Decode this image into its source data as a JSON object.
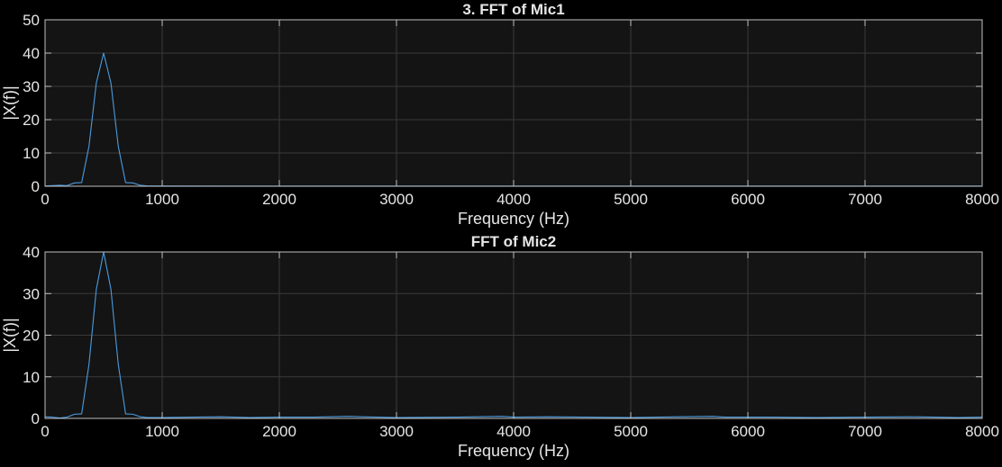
{
  "figure": {
    "background": "#000000",
    "axes_background": "#141414",
    "grid_color": "#3a3a3a",
    "axis_color": "#bfbfbf",
    "text_color": "#e6e6e6",
    "line_color": "#4a9be0"
  },
  "chart_data": [
    {
      "type": "line",
      "title": "3. FFT of Mic1",
      "xlabel": "Frequency (Hz)",
      "ylabel": "|X(f)|",
      "xlim": [
        0,
        8000
      ],
      "ylim": [
        0,
        50
      ],
      "xticks": [
        0,
        1000,
        2000,
        3000,
        4000,
        5000,
        6000,
        7000,
        8000
      ],
      "yticks": [
        0,
        10,
        20,
        30,
        40,
        50
      ],
      "grid": true,
      "series": [
        {
          "x": [
            0,
            62.5,
            125,
            187.5,
            250,
            312.5,
            375,
            437.5,
            500,
            562.5,
            625,
            687.5,
            750,
            812.5,
            875,
            1000,
            1500,
            2000,
            3000,
            4000,
            5000,
            6000,
            7000,
            8000
          ],
          "y": [
            0.1,
            0.2,
            0.3,
            0.2,
            1.0,
            1.1,
            12,
            31,
            40,
            31,
            12,
            1.1,
            1.0,
            0.3,
            0.1,
            0.1,
            0.05,
            0.05,
            0.05,
            0.05,
            0.05,
            0.05,
            0.05,
            0.05
          ]
        }
      ]
    },
    {
      "type": "line",
      "title": "FFT of Mic2",
      "xlabel": "Frequency (Hz)",
      "ylabel": "|X(f)|",
      "xlim": [
        0,
        8000
      ],
      "ylim": [
        0,
        40
      ],
      "xticks": [
        0,
        1000,
        2000,
        3000,
        4000,
        5000,
        6000,
        7000,
        8000
      ],
      "yticks": [
        0,
        10,
        20,
        30,
        40
      ],
      "grid": true,
      "series": [
        {
          "x": [
            0,
            62.5,
            125,
            187.5,
            250,
            312.5,
            375,
            437.5,
            500,
            562.5,
            625,
            687.5,
            750,
            812.5,
            875,
            1000,
            1250,
            1500,
            1750,
            2000,
            2300,
            2600,
            2700,
            3000,
            3500,
            3900,
            4000,
            4300,
            4600,
            5000,
            5400,
            5700,
            5800,
            6200,
            6600,
            7000,
            7400,
            7800,
            8000
          ],
          "y": [
            0.4,
            0.3,
            0.1,
            0.3,
            1.0,
            1.1,
            13,
            31,
            40,
            31,
            13,
            1.1,
            1.0,
            0.4,
            0.2,
            0.2,
            0.3,
            0.4,
            0.2,
            0.3,
            0.3,
            0.5,
            0.4,
            0.2,
            0.3,
            0.5,
            0.3,
            0.4,
            0.3,
            0.2,
            0.4,
            0.5,
            0.3,
            0.3,
            0.2,
            0.3,
            0.4,
            0.2,
            0.3
          ]
        }
      ]
    }
  ]
}
